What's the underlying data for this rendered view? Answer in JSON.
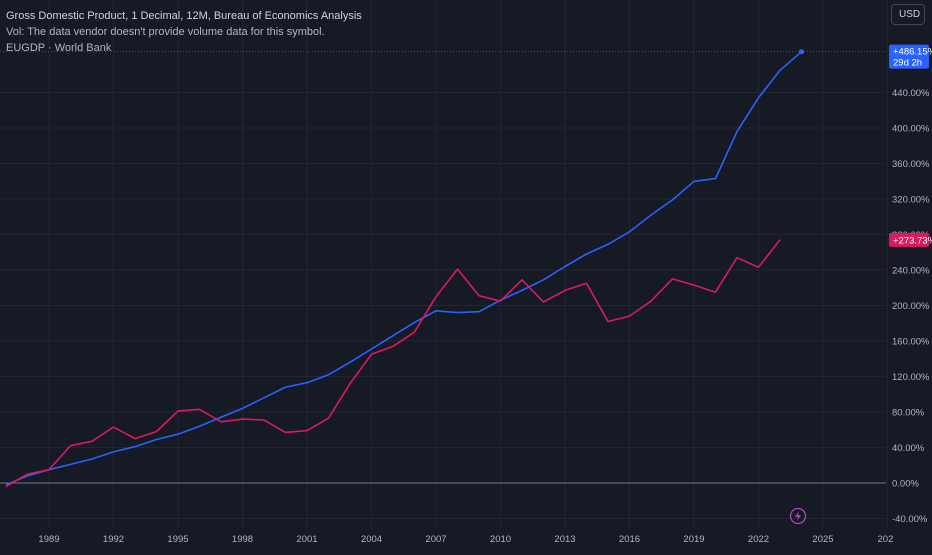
{
  "header": {
    "title_line": "Gross Domestic Product, 1 Decimal, 12M, Bureau of Economics Analysis",
    "volume_note": "Vol: The data vendor doesn't provide volume data for this symbol.",
    "compare_symbol": "EUGDP · World Bank"
  },
  "currency_button": "USD",
  "colors": {
    "background": "#161a25",
    "grid": "#232632",
    "primary_series": "#2962ff",
    "secondary_series": "#d81b60",
    "zero_line": "#787b86",
    "axis_text": "#b2b5be"
  },
  "icons": {
    "lightning": "lightning-icon"
  },
  "chart_data": {
    "type": "line",
    "x_unit": "year",
    "xlim": [
      1986.8,
      2028.0
    ],
    "ylim": [
      -40,
      490
    ],
    "y_ticks": [
      -40,
      0,
      40,
      80,
      120,
      160,
      200,
      240,
      280,
      320,
      360,
      400,
      440
    ],
    "y_tick_labels": [
      "-40.00%",
      "0.00%",
      "40.00%",
      "80.00%",
      "120.00%",
      "160.00%",
      "200.00%",
      "240.00%",
      "280.00%",
      "320.00%",
      "360.00%",
      "400.00%",
      "440.00%"
    ],
    "x_ticks": [
      1989,
      1992,
      1995,
      1998,
      2001,
      2004,
      2007,
      2010,
      2013,
      2016,
      2019,
      2022,
      2025
    ],
    "x_tick_labels": [
      "1989",
      "1992",
      "1995",
      "1998",
      "2001",
      "2004",
      "2007",
      "2010",
      "2013",
      "2016",
      "2019",
      "2022",
      "2025"
    ],
    "x_tick_trailing_label": "202",
    "series": [
      {
        "id": "primary",
        "color": "#2962ff",
        "points": [
          [
            1987,
            -2
          ],
          [
            1988,
            8
          ],
          [
            1989,
            15
          ],
          [
            1990,
            21
          ],
          [
            1991,
            27
          ],
          [
            1992,
            35
          ],
          [
            1993,
            41
          ],
          [
            1994,
            49
          ],
          [
            1995,
            55
          ],
          [
            1996,
            64
          ],
          [
            1997,
            74
          ],
          [
            1998,
            84
          ],
          [
            1999,
            96
          ],
          [
            2000,
            108
          ],
          [
            2001,
            113
          ],
          [
            2002,
            122
          ],
          [
            2003,
            136
          ],
          [
            2004,
            151
          ],
          [
            2005,
            166
          ],
          [
            2006,
            181
          ],
          [
            2007,
            194
          ],
          [
            2008,
            192
          ],
          [
            2009,
            193
          ],
          [
            2010,
            206
          ],
          [
            2011,
            217
          ],
          [
            2012,
            229
          ],
          [
            2013,
            244
          ],
          [
            2014,
            258
          ],
          [
            2015,
            269
          ],
          [
            2016,
            283
          ],
          [
            2017,
            302
          ],
          [
            2018,
            319
          ],
          [
            2019,
            340
          ],
          [
            2020,
            343
          ],
          [
            2021,
            396
          ],
          [
            2022,
            434
          ],
          [
            2023,
            465
          ],
          [
            2024,
            486
          ]
        ],
        "last_value_label": "+486.15%",
        "countdown_label": "29d 2h"
      },
      {
        "id": "EUGDP",
        "color": "#d81b60",
        "points": [
          [
            1987,
            -4
          ],
          [
            1988,
            10
          ],
          [
            1989,
            15
          ],
          [
            1990,
            42
          ],
          [
            1991,
            47
          ],
          [
            1992,
            63
          ],
          [
            1993,
            50
          ],
          [
            1994,
            58
          ],
          [
            1995,
            81
          ],
          [
            1996,
            83
          ],
          [
            1997,
            69
          ],
          [
            1998,
            72
          ],
          [
            1999,
            71
          ],
          [
            2000,
            57
          ],
          [
            2001,
            59
          ],
          [
            2002,
            73
          ],
          [
            2003,
            112
          ],
          [
            2004,
            145
          ],
          [
            2005,
            154
          ],
          [
            2006,
            170
          ],
          [
            2007,
            210
          ],
          [
            2008,
            241
          ],
          [
            2009,
            211
          ],
          [
            2010,
            205
          ],
          [
            2011,
            229
          ],
          [
            2012,
            204
          ],
          [
            2013,
            217
          ],
          [
            2014,
            225
          ],
          [
            2015,
            182
          ],
          [
            2016,
            188
          ],
          [
            2017,
            205
          ],
          [
            2018,
            230
          ],
          [
            2019,
            223
          ],
          [
            2020,
            215
          ],
          [
            2021,
            254
          ],
          [
            2022,
            243
          ],
          [
            2023,
            274
          ]
        ],
        "last_value_label": "+273.73%"
      }
    ]
  }
}
